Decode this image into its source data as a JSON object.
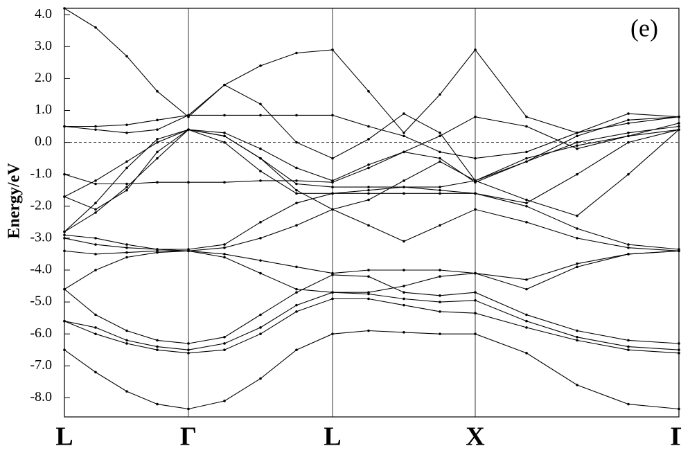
{
  "chart_data": {
    "type": "line",
    "y_label": "Energy/eV",
    "annotation": "(e)",
    "xlim": [
      0,
      887
    ],
    "ylim": [
      -8.6,
      4.2
    ],
    "xticks": [
      {
        "value": 0,
        "label": "L"
      },
      {
        "value": 179,
        "label": "Γ"
      },
      {
        "value": 387,
        "label": "L"
      },
      {
        "value": 593,
        "label": "X"
      },
      {
        "value": 887,
        "label": "Γ"
      }
    ],
    "yticks": [
      {
        "value": 4,
        "label": "4.0"
      },
      {
        "value": 3,
        "label": "3.0"
      },
      {
        "value": 2,
        "label": "2.0"
      },
      {
        "value": 1,
        "label": "1.0"
      },
      {
        "value": 0,
        "label": "0.0"
      },
      {
        "value": -1,
        "label": "-1.0"
      },
      {
        "value": -2,
        "label": "-2.0"
      },
      {
        "value": -3,
        "label": "-3.0"
      },
      {
        "value": -4,
        "label": "-4.0"
      },
      {
        "value": -5,
        "label": "-5.0"
      },
      {
        "value": -6,
        "label": "-6.0"
      },
      {
        "value": -7,
        "label": "-7.0"
      },
      {
        "value": -8,
        "label": "-8.0"
      }
    ],
    "reference_line": 0,
    "x": [
      0,
      45,
      90,
      134,
      179,
      231,
      283,
      335,
      387,
      439,
      490,
      542,
      593,
      667,
      740,
      814,
      887
    ],
    "series": [
      {
        "color": "#000000",
        "values": [
          -6.5,
          -7.2,
          -7.8,
          -8.2,
          -8.35,
          -8.1,
          -7.4,
          -6.5,
          -6.0,
          -5.9,
          -5.95,
          -6.0,
          -6.0,
          -6.6,
          -7.6,
          -8.2,
          -8.35
        ]
      },
      {
        "color": "#000000",
        "values": [
          -5.6,
          -6.0,
          -6.3,
          -6.5,
          -6.6,
          -6.5,
          -6.0,
          -5.3,
          -4.9,
          -4.9,
          -5.1,
          -5.3,
          -5.35,
          -5.8,
          -6.2,
          -6.5,
          -6.6
        ]
      },
      {
        "color": "#000000",
        "values": [
          -5.6,
          -5.8,
          -6.2,
          -6.4,
          -6.5,
          -6.3,
          -5.8,
          -5.1,
          -4.7,
          -4.75,
          -4.9,
          -5.0,
          -4.95,
          -5.6,
          -6.1,
          -6.4,
          -6.5
        ]
      },
      {
        "color": "#000000",
        "values": [
          -4.6,
          -5.4,
          -5.9,
          -6.2,
          -6.3,
          -6.1,
          -5.4,
          -4.7,
          -4.15,
          -4.2,
          -4.7,
          -4.8,
          -4.7,
          -5.4,
          -5.9,
          -6.2,
          -6.3
        ]
      },
      {
        "color": "#000000",
        "values": [
          -4.6,
          -4.0,
          -3.6,
          -3.45,
          -3.4,
          -3.6,
          -4.1,
          -4.6,
          -4.7,
          -4.7,
          -4.5,
          -4.2,
          -4.1,
          -4.6,
          -3.9,
          -3.5,
          -3.4
        ]
      },
      {
        "color": "#000000",
        "values": [
          -3.4,
          -3.5,
          -3.45,
          -3.4,
          -3.4,
          -3.5,
          -3.7,
          -3.9,
          -4.1,
          -4.0,
          -4.0,
          -4.0,
          -4.1,
          -4.3,
          -3.8,
          -3.5,
          -3.4
        ]
      },
      {
        "color": "#000000",
        "values": [
          -3.0,
          -3.2,
          -3.3,
          -3.35,
          -3.4,
          -3.3,
          -3.0,
          -2.6,
          -2.1,
          -2.6,
          -3.1,
          -2.6,
          -2.1,
          -2.5,
          -3.0,
          -3.3,
          -3.4
        ]
      },
      {
        "color": "#000000",
        "values": [
          -2.9,
          -3.0,
          -3.2,
          -3.35,
          -3.35,
          -3.2,
          -2.5,
          -1.9,
          -1.6,
          -1.6,
          -1.6,
          -1.6,
          -1.6,
          -2.0,
          -2.7,
          -3.2,
          -3.35
        ]
      },
      {
        "color": "#000000",
        "values": [
          -2.8,
          -2.2,
          -1.4,
          -0.5,
          0.4,
          0.0,
          -0.9,
          -1.6,
          -1.6,
          -1.5,
          -1.4,
          -1.5,
          -1.6,
          -1.9,
          -1.0,
          0.0,
          0.4
        ]
      },
      {
        "color": "#000000",
        "values": [
          -2.8,
          -1.9,
          -0.8,
          0.1,
          0.4,
          0.2,
          -0.5,
          -1.3,
          -1.4,
          -1.4,
          -1.4,
          -1.4,
          -1.2,
          -0.5,
          -0.1,
          0.2,
          0.4
        ]
      },
      {
        "color": "#000000",
        "values": [
          -1.7,
          -1.2,
          -0.6,
          0.0,
          0.4,
          0.3,
          -0.2,
          -0.8,
          -1.2,
          -0.7,
          -0.3,
          0.2,
          0.8,
          0.5,
          -0.2,
          0.2,
          0.6
        ]
      },
      {
        "color": "#000000",
        "values": [
          -1.7,
          -2.1,
          -1.5,
          -0.3,
          0.4,
          0.2,
          -0.5,
          -1.5,
          -2.1,
          -1.8,
          -1.2,
          -0.6,
          -1.2,
          -1.8,
          -2.3,
          -1.0,
          0.4
        ]
      },
      {
        "color": "#000000",
        "values": [
          -1.0,
          -1.3,
          -1.3,
          -1.25,
          -1.25,
          -1.25,
          -1.2,
          -1.2,
          -1.25,
          -0.8,
          -0.3,
          -0.5,
          -1.25,
          -0.6,
          0.0,
          0.3,
          0.5
        ]
      },
      {
        "color": "#000000",
        "values": [
          0.5,
          0.5,
          0.55,
          0.7,
          0.85,
          0.85,
          0.85,
          0.85,
          0.85,
          0.5,
          0.2,
          -0.3,
          -0.5,
          -0.3,
          0.3,
          0.6,
          0.8
        ]
      },
      {
        "color": "#000000",
        "values": [
          0.5,
          0.4,
          0.3,
          0.4,
          0.85,
          1.8,
          2.4,
          2.8,
          2.9,
          1.6,
          0.3,
          1.5,
          2.9,
          0.8,
          0.3,
          0.9,
          0.8
        ]
      },
      {
        "color": "#000000",
        "values": [
          4.2,
          3.6,
          2.7,
          1.6,
          0.8,
          1.8,
          1.2,
          0.0,
          -0.5,
          0.1,
          0.9,
          0.3,
          -1.2,
          -0.6,
          0.2,
          0.7,
          0.8
        ]
      }
    ]
  }
}
